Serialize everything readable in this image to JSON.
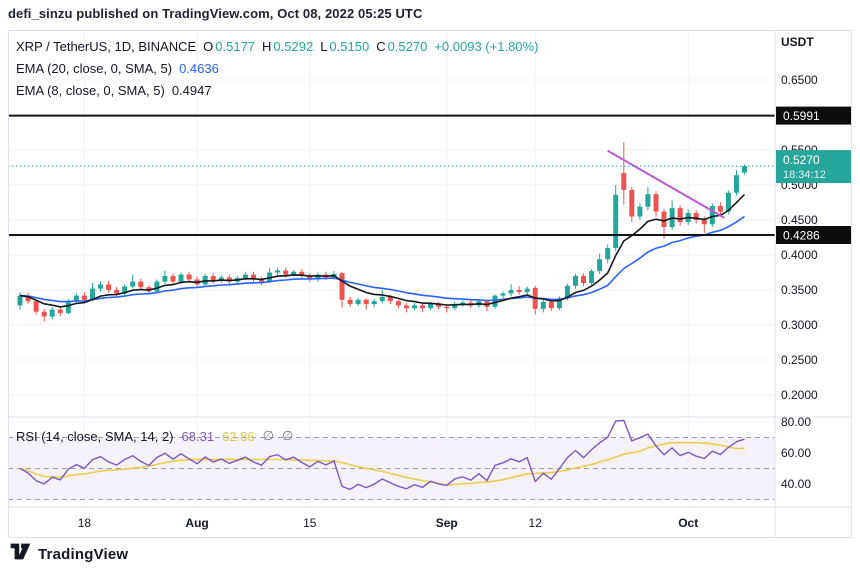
{
  "header": {
    "attribution": "defi_sinzu published on TradingView.com, Oct 08, 2022 05:25 UTC"
  },
  "legend": {
    "symbol": "XRP / TetherUS, 1D, BINANCE",
    "ohlc": {
      "o_label": "O",
      "o_value": "0.5177",
      "h_label": "H",
      "h_value": "0.5292",
      "l_label": "L",
      "l_value": "0.5150",
      "c_label": "C",
      "c_value": "0.5270",
      "change": "+0.0093 (+1.80%)"
    },
    "ema20": {
      "label": "EMA (20, close, 0, SMA, 5)",
      "value": "0.4636"
    },
    "ema8": {
      "label": "EMA (8, close, 0, SMA, 5)",
      "value": "0.4947"
    }
  },
  "rsi_legend": {
    "label": "RSI (14, close, SMA, 14, 2)",
    "value": "68.31",
    "ma_value": "62.86",
    "na1": "∅",
    "na2": "∅"
  },
  "footer": {
    "brand": "TradingView"
  },
  "chart_data": {
    "type": "candlestick",
    "title": "XRP / TetherUS, 1D, BINANCE",
    "currency_label": "USDT",
    "price_axis": {
      "ylim": [
        0.168,
        0.721
      ],
      "ticks": [
        {
          "text": "0.6500",
          "value": 0.65
        },
        {
          "text": "0.5500",
          "value": 0.55
        },
        {
          "text": "0.5000",
          "value": 0.5
        },
        {
          "text": "0.4500",
          "value": 0.45
        },
        {
          "text": "0.4000",
          "value": 0.4
        },
        {
          "text": "0.3500",
          "value": 0.35
        },
        {
          "text": "0.3000",
          "value": 0.3
        },
        {
          "text": "0.2500",
          "value": 0.25
        },
        {
          "text": "0.2000",
          "value": 0.2
        }
      ],
      "level_badges": [
        {
          "text": "0.5991",
          "value": 0.5991
        },
        {
          "text": "0.4286",
          "value": 0.4286
        }
      ],
      "price_badge": {
        "text": "0.5270",
        "countdown": "18:34:12",
        "value": 0.527
      }
    },
    "time_axis": {
      "ticks": [
        {
          "text": "18",
          "index": 8,
          "bold": false
        },
        {
          "text": "Aug",
          "index": 22,
          "bold": true
        },
        {
          "text": "15",
          "index": 36,
          "bold": false
        },
        {
          "text": "Sep",
          "index": 53,
          "bold": true
        },
        {
          "text": "12",
          "index": 64,
          "bold": false
        },
        {
          "text": "Oct",
          "index": 83,
          "bold": true
        }
      ]
    },
    "levels": [
      0.5991,
      0.4286
    ],
    "current_price_line": 0.527,
    "trendline": {
      "i1": 73,
      "p1": 0.549,
      "i2": 87.5,
      "p2": 0.453
    },
    "rsi_panel": {
      "ylim": [
        25,
        83
      ],
      "upper_band": 70,
      "lower_band": 30,
      "middle": 50,
      "ticks": [
        {
          "text": "80.00",
          "value": 80
        },
        {
          "text": "60.00",
          "value": 60
        },
        {
          "text": "40.00",
          "value": 40
        }
      ]
    },
    "colors": {
      "up": "#26a69a",
      "down": "#ef5350",
      "ema8": "#15181e",
      "ema20": "#2962ff",
      "rsi": "#7e57c2",
      "rsi_ma": "#e8cf4e",
      "rsi_band": "#f5f2fb",
      "trendline": "#bb5bd2",
      "level_line": "#141414",
      "price_line": "#26a69a",
      "grid": "#f0f3fa",
      "axis_text": "#131722",
      "badge_dark": "#0d0d0d",
      "dash": "#9a9da8",
      "border": "#e0e3eb"
    },
    "candles": [
      [
        0.328,
        0.347,
        0.322,
        0.342
      ],
      [
        0.342,
        0.346,
        0.33,
        0.334
      ],
      [
        0.334,
        0.337,
        0.315,
        0.319
      ],
      [
        0.319,
        0.323,
        0.305,
        0.312
      ],
      [
        0.312,
        0.326,
        0.308,
        0.322
      ],
      [
        0.322,
        0.325,
        0.313,
        0.317
      ],
      [
        0.317,
        0.337,
        0.315,
        0.334
      ],
      [
        0.334,
        0.345,
        0.331,
        0.342
      ],
      [
        0.342,
        0.347,
        0.332,
        0.336
      ],
      [
        0.336,
        0.36,
        0.334,
        0.352
      ],
      [
        0.352,
        0.362,
        0.347,
        0.358
      ],
      [
        0.358,
        0.363,
        0.346,
        0.35
      ],
      [
        0.35,
        0.354,
        0.341,
        0.345
      ],
      [
        0.345,
        0.358,
        0.342,
        0.355
      ],
      [
        0.355,
        0.372,
        0.352,
        0.362
      ],
      [
        0.362,
        0.366,
        0.35,
        0.354
      ],
      [
        0.354,
        0.357,
        0.344,
        0.348
      ],
      [
        0.348,
        0.365,
        0.346,
        0.362
      ],
      [
        0.362,
        0.378,
        0.359,
        0.37
      ],
      [
        0.37,
        0.374,
        0.358,
        0.362
      ],
      [
        0.362,
        0.375,
        0.36,
        0.372
      ],
      [
        0.372,
        0.376,
        0.361,
        0.365
      ],
      [
        0.365,
        0.369,
        0.354,
        0.358
      ],
      [
        0.358,
        0.373,
        0.356,
        0.37
      ],
      [
        0.37,
        0.374,
        0.359,
        0.363
      ],
      [
        0.363,
        0.371,
        0.36,
        0.368
      ],
      [
        0.368,
        0.372,
        0.358,
        0.362
      ],
      [
        0.362,
        0.37,
        0.359,
        0.367
      ],
      [
        0.367,
        0.376,
        0.364,
        0.372
      ],
      [
        0.372,
        0.376,
        0.362,
        0.366
      ],
      [
        0.366,
        0.369,
        0.357,
        0.362
      ],
      [
        0.362,
        0.381,
        0.36,
        0.375
      ],
      [
        0.375,
        0.382,
        0.37,
        0.378
      ],
      [
        0.378,
        0.382,
        0.368,
        0.372
      ],
      [
        0.372,
        0.379,
        0.369,
        0.376
      ],
      [
        0.376,
        0.38,
        0.366,
        0.37
      ],
      [
        0.37,
        0.374,
        0.361,
        0.365
      ],
      [
        0.365,
        0.375,
        0.362,
        0.372
      ],
      [
        0.372,
        0.376,
        0.364,
        0.368
      ],
      [
        0.368,
        0.377,
        0.365,
        0.373
      ],
      [
        0.374,
        0.376,
        0.325,
        0.336
      ],
      [
        0.336,
        0.34,
        0.326,
        0.33
      ],
      [
        0.33,
        0.339,
        0.327,
        0.336
      ],
      [
        0.336,
        0.338,
        0.322,
        0.33
      ],
      [
        0.33,
        0.337,
        0.326,
        0.334
      ],
      [
        0.334,
        0.35,
        0.331,
        0.34
      ],
      [
        0.34,
        0.343,
        0.33,
        0.334
      ],
      [
        0.334,
        0.336,
        0.324,
        0.328
      ],
      [
        0.328,
        0.331,
        0.318,
        0.324
      ],
      [
        0.324,
        0.331,
        0.321,
        0.328
      ],
      [
        0.328,
        0.331,
        0.319,
        0.324
      ],
      [
        0.324,
        0.333,
        0.321,
        0.33
      ],
      [
        0.33,
        0.333,
        0.322,
        0.326
      ],
      [
        0.326,
        0.329,
        0.318,
        0.324
      ],
      [
        0.324,
        0.333,
        0.321,
        0.33
      ],
      [
        0.33,
        0.335,
        0.326,
        0.332
      ],
      [
        0.332,
        0.335,
        0.324,
        0.328
      ],
      [
        0.328,
        0.337,
        0.325,
        0.334
      ],
      [
        0.334,
        0.336,
        0.32,
        0.326
      ],
      [
        0.326,
        0.344,
        0.323,
        0.342
      ],
      [
        0.342,
        0.348,
        0.338,
        0.345
      ],
      [
        0.345,
        0.358,
        0.341,
        0.35
      ],
      [
        0.35,
        0.356,
        0.343,
        0.347
      ],
      [
        0.347,
        0.355,
        0.344,
        0.352
      ],
      [
        0.353,
        0.356,
        0.315,
        0.323
      ],
      [
        0.323,
        0.336,
        0.318,
        0.333
      ],
      [
        0.333,
        0.336,
        0.32,
        0.324
      ],
      [
        0.324,
        0.341,
        0.321,
        0.338
      ],
      [
        0.338,
        0.359,
        0.335,
        0.356
      ],
      [
        0.356,
        0.373,
        0.352,
        0.37
      ],
      [
        0.37,
        0.374,
        0.356,
        0.36
      ],
      [
        0.36,
        0.38,
        0.357,
        0.377
      ],
      [
        0.377,
        0.402,
        0.373,
        0.394
      ],
      [
        0.394,
        0.415,
        0.388,
        0.41
      ],
      [
        0.41,
        0.5,
        0.405,
        0.486
      ],
      [
        0.517,
        0.561,
        0.472,
        0.493
      ],
      [
        0.493,
        0.497,
        0.447,
        0.455
      ],
      [
        0.455,
        0.474,
        0.45,
        0.469
      ],
      [
        0.469,
        0.497,
        0.464,
        0.487
      ],
      [
        0.487,
        0.491,
        0.455,
        0.462
      ],
      [
        0.462,
        0.466,
        0.423,
        0.44
      ],
      [
        0.44,
        0.478,
        0.436,
        0.467
      ],
      [
        0.467,
        0.471,
        0.442,
        0.447
      ],
      [
        0.447,
        0.465,
        0.443,
        0.46
      ],
      [
        0.46,
        0.464,
        0.445,
        0.45
      ],
      [
        0.45,
        0.455,
        0.431,
        0.444
      ],
      [
        0.444,
        0.474,
        0.44,
        0.47
      ],
      [
        0.47,
        0.475,
        0.455,
        0.462
      ],
      [
        0.462,
        0.492,
        0.458,
        0.489
      ],
      [
        0.489,
        0.521,
        0.485,
        0.514
      ],
      [
        0.5177,
        0.5292,
        0.515,
        0.527
      ]
    ]
  }
}
